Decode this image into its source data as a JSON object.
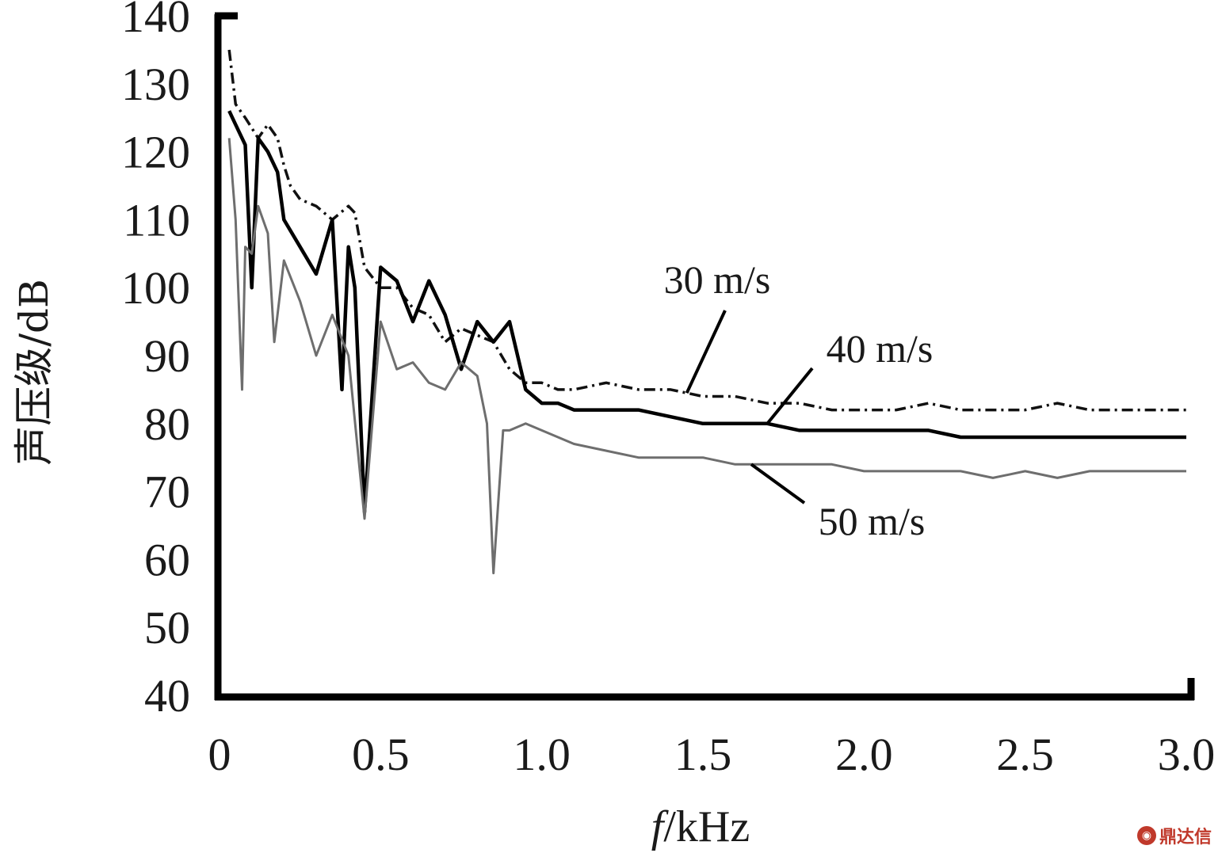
{
  "chart_data": {
    "type": "line",
    "xlabel_italic": "f",
    "xlabel_unit": "/kHz",
    "ylabel": "声压级/dB",
    "xlim": [
      0,
      3.0
    ],
    "ylim": [
      40,
      140
    ],
    "x_ticks": [
      "0",
      "0.5",
      "1.0",
      "1.5",
      "2.0",
      "2.5",
      "3.0"
    ],
    "y_ticks": [
      "40",
      "50",
      "60",
      "70",
      "80",
      "90",
      "100",
      "110",
      "120",
      "130",
      "140"
    ],
    "grid": false,
    "series": [
      {
        "name": "30 m/s",
        "color": "#111111",
        "style": "dash-dot",
        "x": [
          0.03,
          0.05,
          0.08,
          0.12,
          0.15,
          0.18,
          0.2,
          0.22,
          0.25,
          0.3,
          0.35,
          0.4,
          0.42,
          0.45,
          0.5,
          0.55,
          0.6,
          0.65,
          0.7,
          0.75,
          0.8,
          0.85,
          0.9,
          0.95,
          1.0,
          1.05,
          1.1,
          1.2,
          1.3,
          1.4,
          1.5,
          1.6,
          1.7,
          1.8,
          1.9,
          2.0,
          2.1,
          2.2,
          2.3,
          2.4,
          2.5,
          2.6,
          2.7,
          2.8,
          2.9,
          3.0
        ],
        "y": [
          135,
          127,
          125,
          122,
          124,
          122,
          118,
          115,
          113,
          112,
          110,
          112,
          111,
          103,
          100,
          100,
          97,
          96,
          92,
          94,
          93,
          92,
          88,
          86,
          86,
          85,
          85,
          86,
          85,
          85,
          84,
          84,
          83,
          83,
          82,
          82,
          82,
          83,
          82,
          82,
          82,
          83,
          82,
          82,
          82,
          82
        ]
      },
      {
        "name": "40 m/s",
        "color": "#000000",
        "style": "solid-bold",
        "x": [
          0.03,
          0.05,
          0.08,
          0.1,
          0.12,
          0.15,
          0.18,
          0.2,
          0.25,
          0.3,
          0.35,
          0.38,
          0.4,
          0.42,
          0.45,
          0.5,
          0.55,
          0.6,
          0.65,
          0.7,
          0.75,
          0.8,
          0.85,
          0.9,
          0.95,
          1.0,
          1.05,
          1.1,
          1.2,
          1.3,
          1.4,
          1.5,
          1.6,
          1.7,
          1.8,
          1.9,
          2.0,
          2.1,
          2.2,
          2.3,
          2.4,
          2.5,
          2.6,
          2.7,
          2.8,
          2.9,
          3.0
        ],
        "y": [
          126,
          124,
          121,
          100,
          122,
          120,
          117,
          110,
          106,
          102,
          110,
          85,
          106,
          100,
          67,
          103,
          101,
          95,
          101,
          96,
          88,
          95,
          92,
          95,
          85,
          83,
          83,
          82,
          82,
          82,
          81,
          80,
          80,
          80,
          79,
          79,
          79,
          79,
          79,
          78,
          78,
          78,
          78,
          78,
          78,
          78,
          78
        ]
      },
      {
        "name": "50 m/s",
        "color": "#6e6e6e",
        "style": "solid",
        "x": [
          0.03,
          0.05,
          0.07,
          0.08,
          0.1,
          0.12,
          0.15,
          0.17,
          0.2,
          0.25,
          0.3,
          0.35,
          0.4,
          0.45,
          0.5,
          0.55,
          0.6,
          0.65,
          0.7,
          0.75,
          0.8,
          0.83,
          0.85,
          0.88,
          0.9,
          0.95,
          1.0,
          1.1,
          1.2,
          1.3,
          1.4,
          1.5,
          1.6,
          1.7,
          1.8,
          1.9,
          2.0,
          2.1,
          2.2,
          2.3,
          2.4,
          2.5,
          2.6,
          2.7,
          2.8,
          2.9,
          3.0
        ],
        "y": [
          122,
          110,
          85,
          106,
          105,
          112,
          108,
          92,
          104,
          98,
          90,
          96,
          90,
          66,
          95,
          88,
          89,
          86,
          85,
          89,
          87,
          80,
          58,
          79,
          79,
          80,
          79,
          77,
          76,
          75,
          75,
          75,
          74,
          74,
          74,
          74,
          73,
          73,
          73,
          73,
          72,
          73,
          72,
          73,
          73,
          73,
          73
        ]
      }
    ],
    "annotations": [
      {
        "text": "30 m/s",
        "series": "30 m/s",
        "at_x": 1.45
      },
      {
        "text": "40 m/s",
        "series": "40 m/s",
        "at_x": 1.7
      },
      {
        "text": "50 m/s",
        "series": "50 m/s",
        "at_x": 1.65
      }
    ],
    "watermark_text": "鼎达信"
  }
}
